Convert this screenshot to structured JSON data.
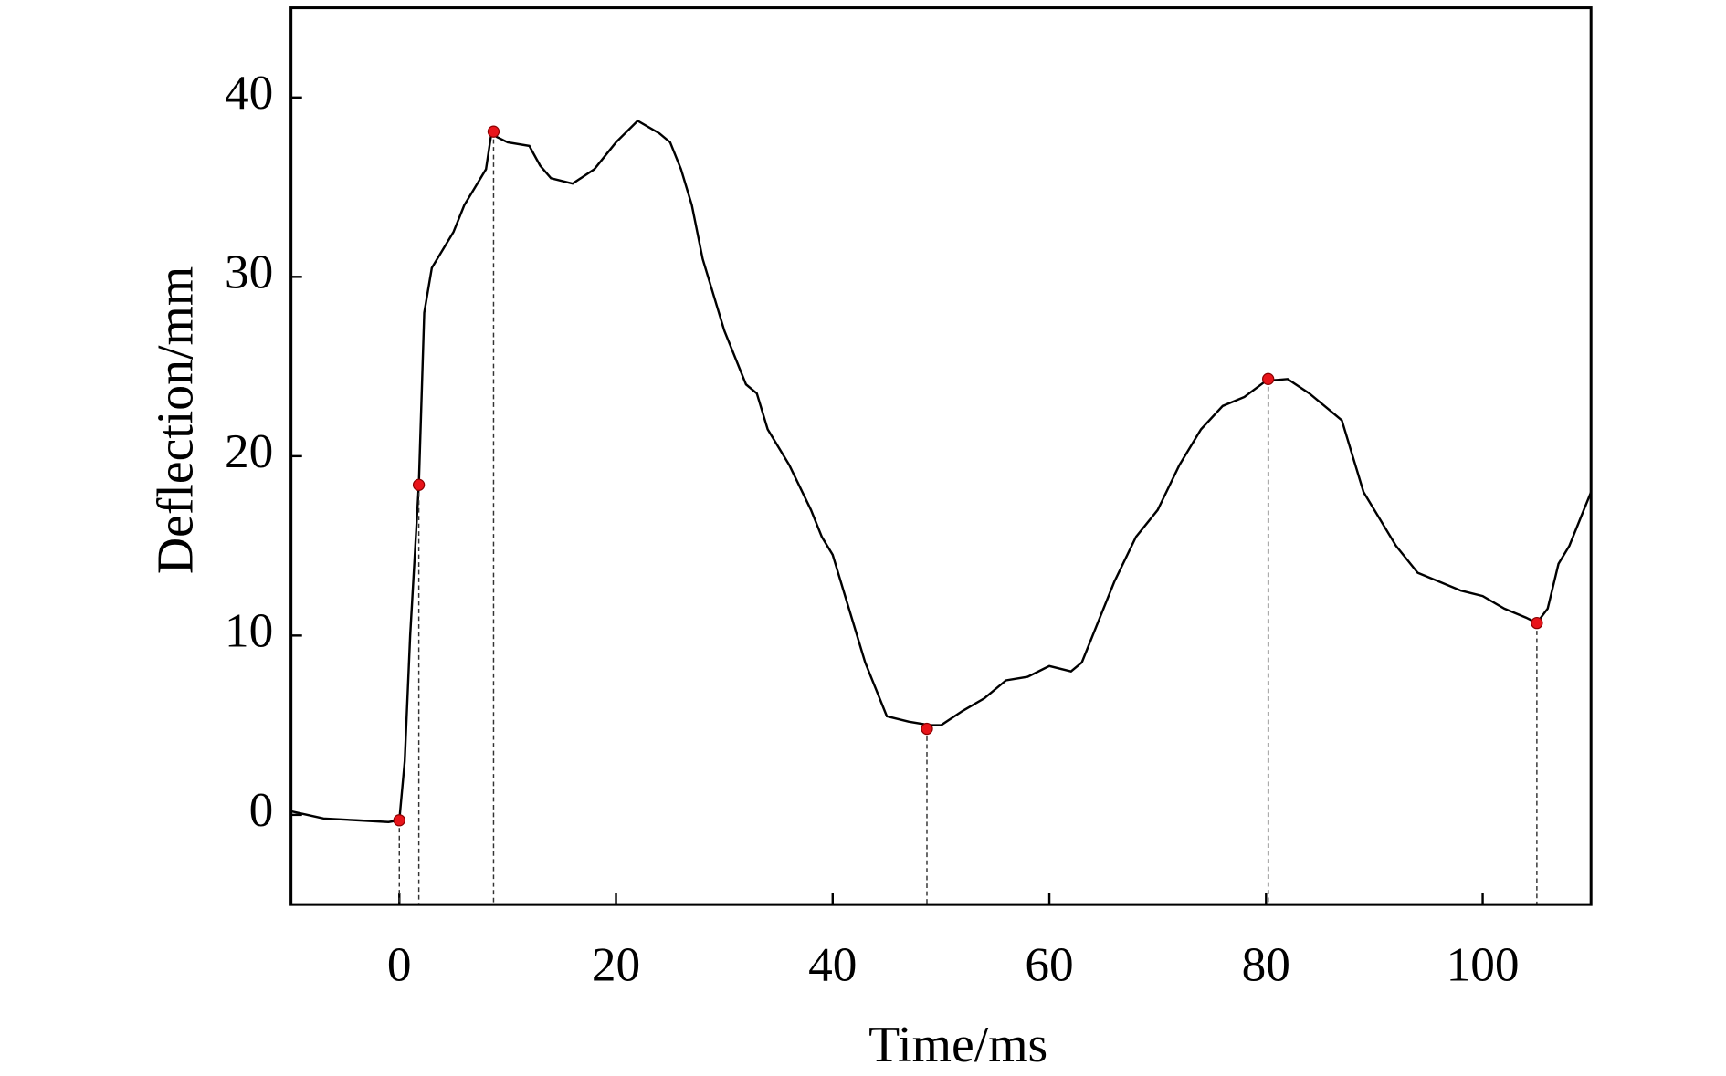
{
  "chart_data": {
    "type": "line",
    "x_label": "Time/ms",
    "y_label": "Deflection/mm",
    "xlim": [
      -10,
      110
    ],
    "ylim": [
      -5,
      45
    ],
    "xticks": [
      0,
      20,
      40,
      60,
      80,
      100
    ],
    "yticks": [
      0,
      10,
      20,
      30,
      40
    ],
    "series": [
      {
        "mode": "line",
        "color": "#000000",
        "x": [
          -10,
          -7,
          -4,
          -1,
          0,
          0.5,
          1,
          1.8,
          2.3,
          3,
          4,
          5,
          6,
          7,
          8,
          8.5,
          9,
          10,
          12,
          13,
          14,
          16,
          18,
          20,
          22,
          24,
          25,
          26,
          27,
          28,
          30,
          32,
          33,
          34,
          36,
          38,
          39,
          40,
          41,
          42,
          43,
          44,
          45,
          47,
          49,
          50,
          52,
          54,
          56,
          58,
          60,
          62,
          63,
          64,
          66,
          68,
          70,
          72,
          74,
          76,
          78,
          80,
          82,
          84,
          86,
          87,
          88,
          89,
          90,
          92,
          94,
          96,
          98,
          100,
          102,
          104,
          105,
          106,
          107,
          108,
          109,
          110
        ],
        "values": [
          0.2,
          -0.2,
          -0.3,
          -0.4,
          -0.3,
          3,
          10,
          18.4,
          28,
          30.5,
          31.5,
          32.5,
          34,
          35,
          36,
          38,
          37.8,
          37.5,
          37.3,
          36.2,
          35.5,
          35.2,
          36,
          37.5,
          38.7,
          38,
          37.5,
          36,
          34,
          31,
          27,
          24,
          23.5,
          21.5,
          19.5,
          17,
          15.5,
          14.5,
          12.5,
          10.5,
          8.5,
          7,
          5.5,
          5.2,
          5,
          5,
          5.8,
          6.5,
          7.5,
          7.7,
          8.3,
          8,
          8.5,
          10,
          13,
          15.5,
          17,
          19.5,
          21.5,
          22.8,
          23.3,
          24.2,
          24.3,
          23.5,
          22.5,
          22,
          20,
          18,
          17,
          15,
          13.5,
          13,
          12.5,
          12.2,
          11.5,
          11,
          10.7,
          11.5,
          14,
          15,
          16.5,
          18
        ]
      },
      {
        "mode": "markers",
        "color": "#e8141a",
        "drop_lines": true,
        "x": [
          0,
          1.8,
          8.7,
          48.7,
          80.2,
          105
        ],
        "values": [
          -0.3,
          18.4,
          38.1,
          4.8,
          24.3,
          10.7
        ]
      }
    ]
  }
}
